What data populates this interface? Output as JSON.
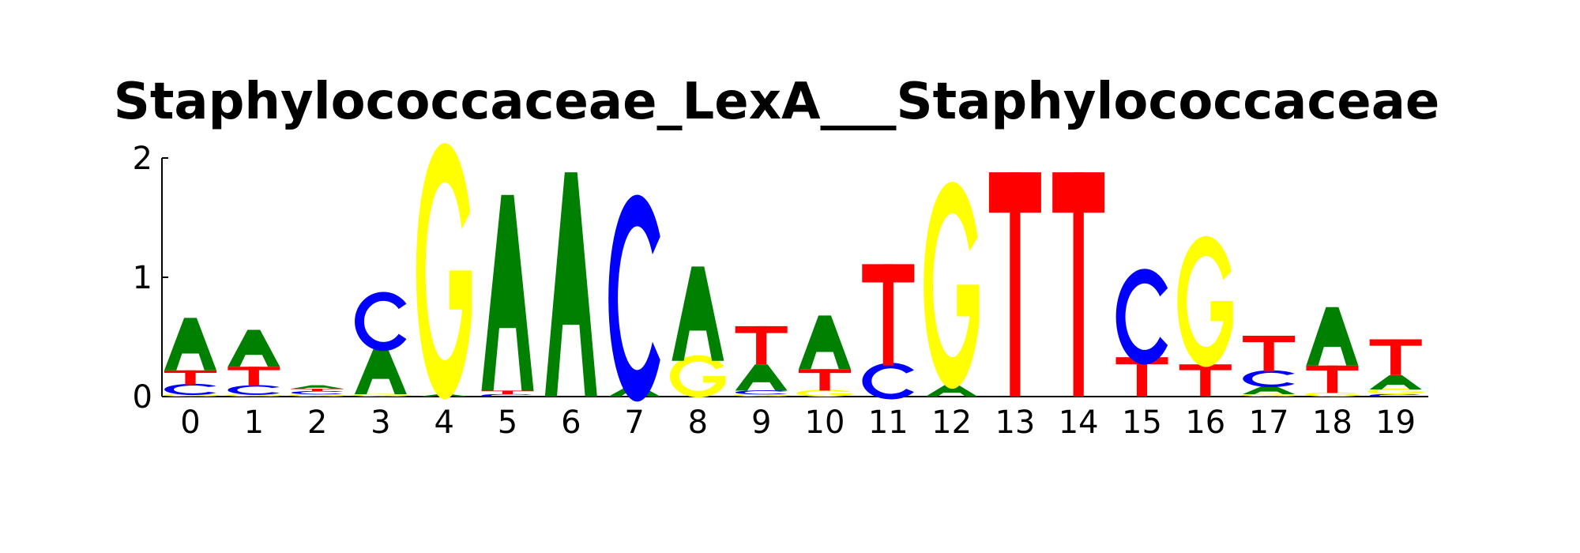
{
  "chart_data": {
    "type": "sequence-logo",
    "title": "Staphylococcaceae_LexA___Staphylococcaceae",
    "xlabel": "",
    "ylabel": "",
    "ylim": [
      0,
      2
    ],
    "yticks": [
      "0",
      "1",
      "2"
    ],
    "positions": [
      "0",
      "1",
      "2",
      "3",
      "4",
      "5",
      "6",
      "7",
      "8",
      "9",
      "10",
      "11",
      "12",
      "13",
      "14",
      "15",
      "16",
      "17",
      "18",
      "19"
    ],
    "colors": {
      "A": "#008000",
      "C": "#0000ff",
      "G": "#ffff00",
      "T": "#ff0000"
    },
    "stacks": [
      [
        {
          "base": "G",
          "value": 0.02
        },
        {
          "base": "C",
          "value": 0.08
        },
        {
          "base": "T",
          "value": 0.12
        },
        {
          "base": "A",
          "value": 0.44
        }
      ],
      [
        {
          "base": "G",
          "value": 0.02
        },
        {
          "base": "C",
          "value": 0.07
        },
        {
          "base": "T",
          "value": 0.16
        },
        {
          "base": "A",
          "value": 0.31
        }
      ],
      [
        {
          "base": "G",
          "value": 0.02
        },
        {
          "base": "C",
          "value": 0.025
        },
        {
          "base": "T",
          "value": 0.02
        },
        {
          "base": "A",
          "value": 0.03
        }
      ],
      [
        {
          "base": "G",
          "value": 0.02
        },
        {
          "base": "A",
          "value": 0.4
        },
        {
          "base": "C",
          "value": 0.42
        }
      ],
      [
        {
          "base": "A",
          "value": 0.02
        },
        {
          "base": "G",
          "value": 1.82
        }
      ],
      [
        {
          "base": "C",
          "value": 0.02
        },
        {
          "base": "T",
          "value": 0.03
        },
        {
          "base": "A",
          "value": 1.64
        }
      ],
      [
        {
          "base": "A",
          "value": 1.88
        }
      ],
      [
        {
          "base": "A",
          "value": 0.09
        },
        {
          "base": "C",
          "value": 1.47
        }
      ],
      [
        {
          "base": "G",
          "value": 0.3
        },
        {
          "base": "A",
          "value": 0.79
        }
      ],
      [
        {
          "base": "G",
          "value": 0.02
        },
        {
          "base": "C",
          "value": 0.03
        },
        {
          "base": "A",
          "value": 0.22
        },
        {
          "base": "T",
          "value": 0.32
        }
      ],
      [
        {
          "base": "G",
          "value": 0.05
        },
        {
          "base": "T",
          "value": 0.18
        },
        {
          "base": "A",
          "value": 0.45
        }
      ],
      [
        {
          "base": "C",
          "value": 0.26
        },
        {
          "base": "T",
          "value": 0.85
        }
      ],
      [
        {
          "base": "A",
          "value": 0.1
        },
        {
          "base": "G",
          "value": 1.47
        }
      ],
      [
        {
          "base": "T",
          "value": 1.88
        }
      ],
      [
        {
          "base": "T",
          "value": 1.88
        }
      ],
      [
        {
          "base": "T",
          "value": 0.33
        },
        {
          "base": "C",
          "value": 0.68
        }
      ],
      [
        {
          "base": "T",
          "value": 0.27
        },
        {
          "base": "G",
          "value": 0.93
        }
      ],
      [
        {
          "base": "G",
          "value": 0.02
        },
        {
          "base": "A",
          "value": 0.07
        },
        {
          "base": "C",
          "value": 0.12
        },
        {
          "base": "T",
          "value": 0.3
        }
      ],
      [
        {
          "base": "G",
          "value": 0.03
        },
        {
          "base": "T",
          "value": 0.23
        },
        {
          "base": "A",
          "value": 0.49
        }
      ],
      [
        {
          "base": "C",
          "value": 0.02
        },
        {
          "base": "G",
          "value": 0.04
        },
        {
          "base": "A",
          "value": 0.12
        },
        {
          "base": "T",
          "value": 0.3
        }
      ]
    ]
  }
}
